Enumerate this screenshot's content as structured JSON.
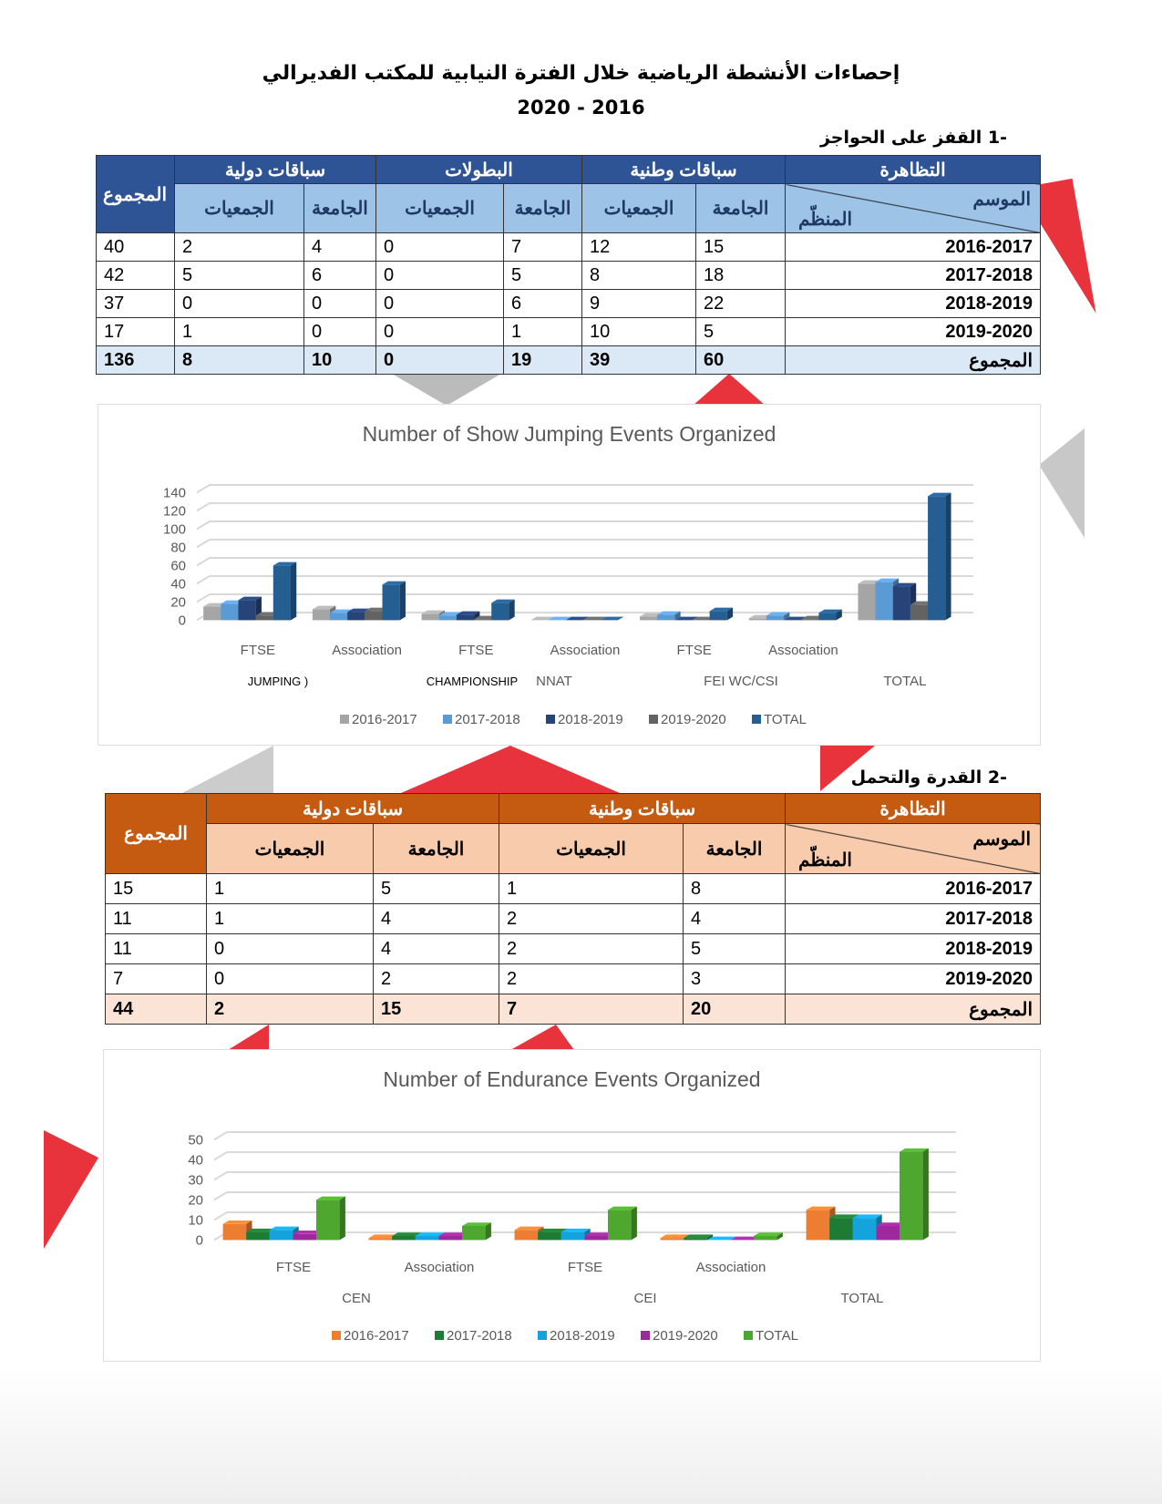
{
  "header": {
    "title": "إحصاءات الأنشطة الرياضية خلال الفترة النيابية للمكتب الفديرالي",
    "period": "2020 - 2016"
  },
  "section1": {
    "heading": "-1  القفز على الحواجز",
    "col_event": "التظاهرة",
    "col_season": "الموسم",
    "col_organizer": "المنظّم",
    "col_total": "المجموع",
    "groups": [
      "سباقات وطنية",
      "البطولات",
      "سباقات دولية"
    ],
    "sub": [
      "الجامعة",
      "الجمعيات"
    ],
    "rows": [
      {
        "season": "2016-2017",
        "values": [
          "15",
          "12",
          "7",
          "0",
          "4",
          "2",
          "40"
        ]
      },
      {
        "season": "2017-2018",
        "values": [
          "18",
          "8",
          "5",
          "0",
          "6",
          "5",
          "42"
        ]
      },
      {
        "season": "2018-2019",
        "values": [
          "22",
          "9",
          "6",
          "0",
          "0",
          "0",
          "37"
        ]
      },
      {
        "season": "2019-2020",
        "values": [
          "5",
          "10",
          "1",
          "0",
          "0",
          "1",
          "17"
        ]
      }
    ],
    "total_row": {
      "label": "المجموع",
      "values": [
        "60",
        "39",
        "19",
        "0",
        "10",
        "8",
        "136"
      ]
    },
    "header_color": "#2f5496",
    "sub_color": "#9dc3e6",
    "total_color": "#dbe9f7"
  },
  "section2": {
    "heading": "-2  القدرة والتحمل",
    "col_event": "التظاهرة",
    "col_season": "الموسم",
    "col_organizer": "المنظّم",
    "col_total": "المجموع",
    "groups": [
      "سباقات وطنية",
      "سباقات دولية"
    ],
    "sub": [
      "الجامعة",
      "الجمعيات"
    ],
    "rows": [
      {
        "season": "2016-2017",
        "values": [
          "8",
          "1",
          "5",
          "1",
          "15"
        ]
      },
      {
        "season": "2017-2018",
        "values": [
          "4",
          "2",
          "4",
          "1",
          "11"
        ]
      },
      {
        "season": "2018-2019",
        "values": [
          "5",
          "2",
          "4",
          "0",
          "11"
        ]
      },
      {
        "season": "2019-2020",
        "values": [
          "3",
          "2",
          "2",
          "0",
          "7"
        ]
      }
    ],
    "total_row": {
      "label": "المجموع",
      "values": [
        "20",
        "7",
        "15",
        "2",
        "44"
      ]
    },
    "header_color": "#c55a11",
    "sub_color": "#f8cbad",
    "total_color": "#fbe4d5"
  },
  "chart_data": [
    {
      "type": "bar",
      "title": "Number of Show Jumping Events Organized",
      "categories": [
        "FTSE",
        "Association",
        "FTSE",
        "Association",
        "FTSE",
        "Association",
        ""
      ],
      "super_labels": [
        "JUMPING  )",
        "CHAMPIONSHIP",
        "NNAT",
        "FEI WC/CSI",
        "TOTAL"
      ],
      "ylim": [
        0,
        140
      ],
      "yticks": [
        0,
        20,
        40,
        60,
        80,
        100,
        120,
        140
      ],
      "series": [
        {
          "name": "2016-2017",
          "color": "#a5a5a5",
          "values": [
            15,
            12,
            7,
            0,
            4,
            2,
            40
          ]
        },
        {
          "name": "2017-2018",
          "color": "#5b9bd5",
          "values": [
            18,
            8,
            5,
            0,
            6,
            5,
            42
          ]
        },
        {
          "name": "2018-2019",
          "color": "#264478",
          "values": [
            22,
            9,
            6,
            0,
            0,
            0,
            37
          ]
        },
        {
          "name": "2019-2020",
          "color": "#636363",
          "values": [
            5,
            10,
            1,
            0,
            0,
            1,
            17
          ]
        },
        {
          "name": "TOTAL",
          "color": "#255e91",
          "values": [
            60,
            39,
            19,
            0,
            10,
            8,
            136
          ]
        }
      ],
      "legend": "bottom",
      "grid": true
    },
    {
      "type": "bar",
      "title": "Number of Endurance Events Organized",
      "categories": [
        "FTSE",
        "Association",
        "FTSE",
        "Association",
        ""
      ],
      "super_labels": [
        "CEN",
        "CEI",
        "TOTAL"
      ],
      "ylim": [
        0,
        50
      ],
      "yticks": [
        0,
        10,
        20,
        30,
        40,
        50
      ],
      "series": [
        {
          "name": "2016-2017",
          "color": "#ed7d31",
          "values": [
            8,
            1,
            5,
            1,
            15
          ]
        },
        {
          "name": "2017-2018",
          "color": "#1e7b34",
          "values": [
            4,
            2,
            4,
            1,
            11
          ]
        },
        {
          "name": "2018-2019",
          "color": "#14a3dc",
          "values": [
            5,
            2,
            4,
            0,
            11
          ]
        },
        {
          "name": "2019-2020",
          "color": "#9c2a9c",
          "values": [
            3,
            2,
            2,
            0,
            7
          ]
        },
        {
          "name": "TOTAL",
          "color": "#4ea72e",
          "values": [
            20,
            7,
            15,
            2,
            44
          ]
        }
      ],
      "legend": "bottom",
      "grid": true
    }
  ]
}
